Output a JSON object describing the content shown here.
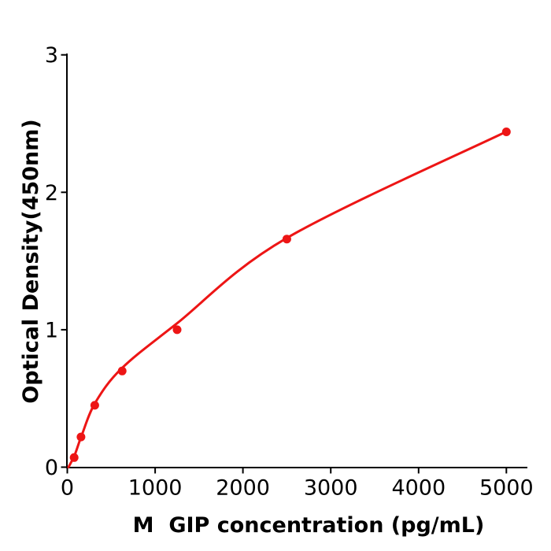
{
  "chart_data": {
    "type": "scatter",
    "title": "",
    "xlabel": "M  GIP concentration (pg/mL)",
    "ylabel": "Optical Density(450nm)",
    "x_ticks": [
      "0",
      "1000",
      "2000",
      "3000",
      "4000",
      "5000"
    ],
    "x_tick_values": [
      0,
      1000,
      2000,
      3000,
      4000,
      5000
    ],
    "y_ticks": [
      "0",
      "1",
      "2",
      "3"
    ],
    "y_tick_values": [
      0,
      1,
      2,
      3
    ],
    "xlim": [
      0,
      5240
    ],
    "ylim": [
      0,
      3
    ],
    "grid": false,
    "legend": null,
    "colors": {
      "curve": "#ed1515",
      "points": "#ed1515",
      "axis": "#000000",
      "background": "#ffffff"
    },
    "series": [
      {
        "name": "standard points",
        "kind": "scatter",
        "points": [
          {
            "x": 78.125,
            "y": 0.07
          },
          {
            "x": 156.25,
            "y": 0.22
          },
          {
            "x": 312.5,
            "y": 0.45
          },
          {
            "x": 625,
            "y": 0.7
          },
          {
            "x": 1250,
            "y": 1.0
          },
          {
            "x": 2500,
            "y": 1.66
          },
          {
            "x": 5000,
            "y": 2.44
          }
        ]
      },
      {
        "name": "fitted curve",
        "kind": "line",
        "points": [
          {
            "x": 13,
            "y": 0.0
          },
          {
            "x": 85,
            "y": 0.09
          },
          {
            "x": 166,
            "y": 0.235
          },
          {
            "x": 318,
            "y": 0.469
          },
          {
            "x": 623,
            "y": 0.721
          },
          {
            "x": 1250,
            "y": 1.047
          },
          {
            "x": 2496,
            "y": 1.666
          },
          {
            "x": 4989,
            "y": 2.438
          }
        ]
      }
    ]
  }
}
